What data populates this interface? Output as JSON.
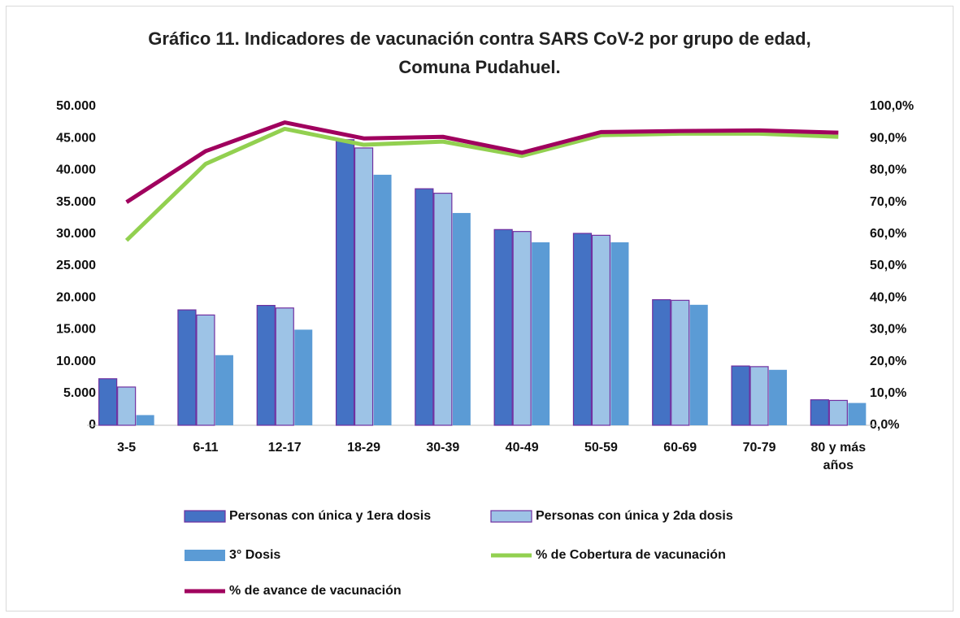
{
  "chart_data": {
    "type": "bar",
    "title": "Gráfico 11. Indicadores de vacunación contra SARS CoV-2 por grupo de edad, Comuna Pudahuel.",
    "categories": [
      "3-5",
      "6-11",
      "12-17",
      "18-29",
      "30-39",
      "40-49",
      "50-59",
      "60-69",
      "70-79",
      "80 y más años"
    ],
    "series": [
      {
        "name": "Personas con única y 1era dosis",
        "type": "bar",
        "color": "#4472c4",
        "values": [
          7300,
          18100,
          18800,
          44800,
          37100,
          30700,
          30100,
          19700,
          9300,
          4000
        ]
      },
      {
        "name": "Personas con única y 2da dosis",
        "type": "bar",
        "color": "#9dc3e6",
        "values": [
          6000,
          17300,
          18400,
          43500,
          36400,
          30400,
          29800,
          19600,
          9200,
          3900
        ]
      },
      {
        "name": "3° Dosis",
        "type": "bar",
        "color": "#5b9bd5",
        "values": [
          1600,
          11000,
          15000,
          39300,
          33300,
          28700,
          28700,
          18900,
          8700,
          3500
        ]
      },
      {
        "name": "% de Cobertura de vacunación",
        "type": "line",
        "axis": "y2",
        "color": "#92d050",
        "values": [
          58,
          82,
          93,
          88,
          89,
          84.5,
          91,
          91.5,
          91.5,
          90.5
        ]
      },
      {
        "name": "% de avance de vacunación",
        "type": "line",
        "axis": "y2",
        "color": "#a0005e",
        "values": [
          70,
          86,
          95,
          90,
          90.5,
          85.5,
          92,
          92.3,
          92.5,
          91.8
        ]
      }
    ],
    "ylim": [
      0,
      50000
    ],
    "yticks": [
      0,
      {
        "value": 5000,
        "label": "5.000"
      },
      {
        "value": 10000,
        "label": "10.000"
      },
      {
        "value": 15000,
        "label": "15.000"
      },
      {
        "value": 20000,
        "label": "20.000"
      },
      {
        "value": 25000,
        "label": "25.000"
      },
      {
        "value": 30000,
        "label": "30.000"
      },
      {
        "value": 35000,
        "label": "35.000"
      },
      {
        "value": 40000,
        "label": "40.000"
      },
      {
        "value": 45000,
        "label": "45.000"
      },
      {
        "value": 50000,
        "label": "50.000"
      }
    ],
    "y2lim": [
      0,
      100
    ],
    "y2ticks": [
      {
        "value": 0,
        "label": "0,0%"
      },
      {
        "value": 10,
        "label": "10,0%"
      },
      {
        "value": 20,
        "label": "20,0%"
      },
      {
        "value": 30,
        "label": "30,0%"
      },
      {
        "value": 40,
        "label": "40,0%"
      },
      {
        "value": 50,
        "label": "50,0%"
      },
      {
        "value": 60,
        "label": "60,0%"
      },
      {
        "value": 70,
        "label": "70,0%"
      },
      {
        "value": 80,
        "label": "80,0%"
      },
      {
        "value": 90,
        "label": "90,0%"
      },
      {
        "value": 100,
        "label": "100,0%"
      }
    ],
    "grid": false,
    "legend": "bottom"
  }
}
